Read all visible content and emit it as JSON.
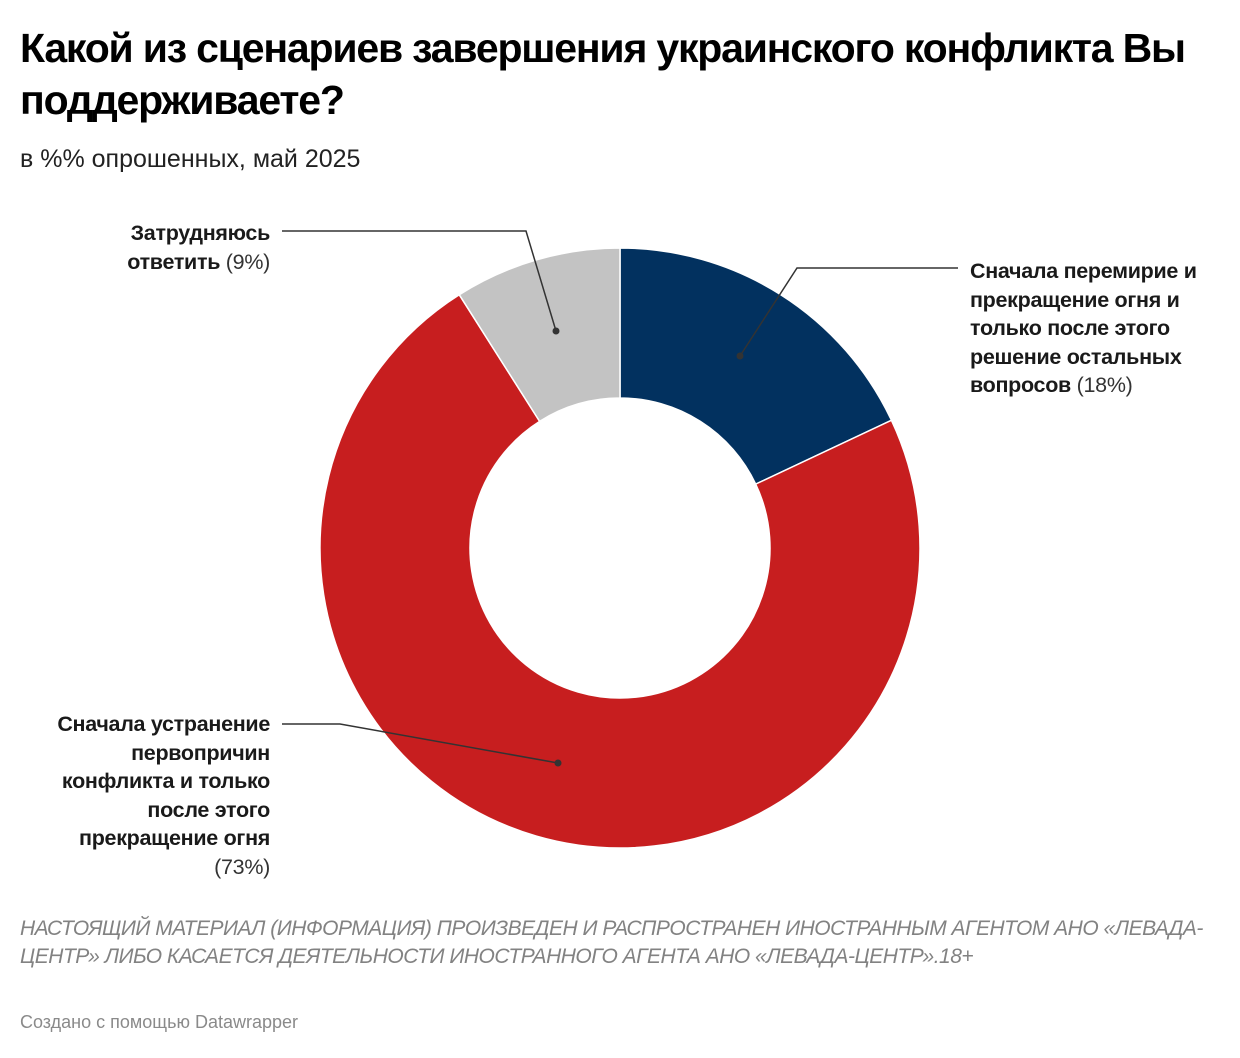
{
  "header": {
    "title": "Какой из сценариев завершения украинского конфликта Вы поддерживаете?",
    "subtitle": "в %% опрошенных, май 2025"
  },
  "chart_data": {
    "type": "pie",
    "variant": "donut",
    "title": "Какой из сценариев завершения украинского конфликта Вы поддерживаете?",
    "subtitle": "в %% опрошенных, май 2025",
    "unit": "%",
    "slices": [
      {
        "label": "Сначала перемирие и прекращение огня и только после этого решение остальных вопросов",
        "value": 18,
        "color": "#02315f",
        "label_text": "(18%)"
      },
      {
        "label": "Сначала устранение первопричин конфликта и только после этого прекращение огня",
        "value": 73,
        "color": "#c71e1f",
        "label_text": "(73%)"
      },
      {
        "label": "Затрудняюсь ответить",
        "value": 9,
        "color": "#c3c3c3",
        "label_text": "(9%)"
      }
    ],
    "start": "top",
    "direction": "clockwise",
    "legend": "none (direct labels with leader lines)"
  },
  "labels": {
    "truce": {
      "text": "Сначала перемирие и прекращение огня и только после этого решение остальных вопросов",
      "pct": "(18%)"
    },
    "root_causes": {
      "text": "Сначала устранение первопричин конфликта и только после этого прекращение огня",
      "pct": "(73%)"
    },
    "dont_know": {
      "text": "Затрудняюсь ответить",
      "pct": "(9%)"
    }
  },
  "footer": {
    "notes": "НАСТОЯЩИЙ МАТЕРИАЛ (ИНФОРМАЦИЯ) ПРОИЗВЕДЕН И РАСПРОСТРАНЕН ИНОСТРАННЫМ АГЕНТОМ АНО «ЛЕВАДА-ЦЕНТР» ЛИБО КАСАЕТСЯ ДЕЯТЕЛЬНОСТИ ИНОСТРАННОГО АГЕНТА АНО «ЛЕВАДА-ЦЕНТР».18+",
    "credit": "Создано с помощью Datawrapper"
  }
}
